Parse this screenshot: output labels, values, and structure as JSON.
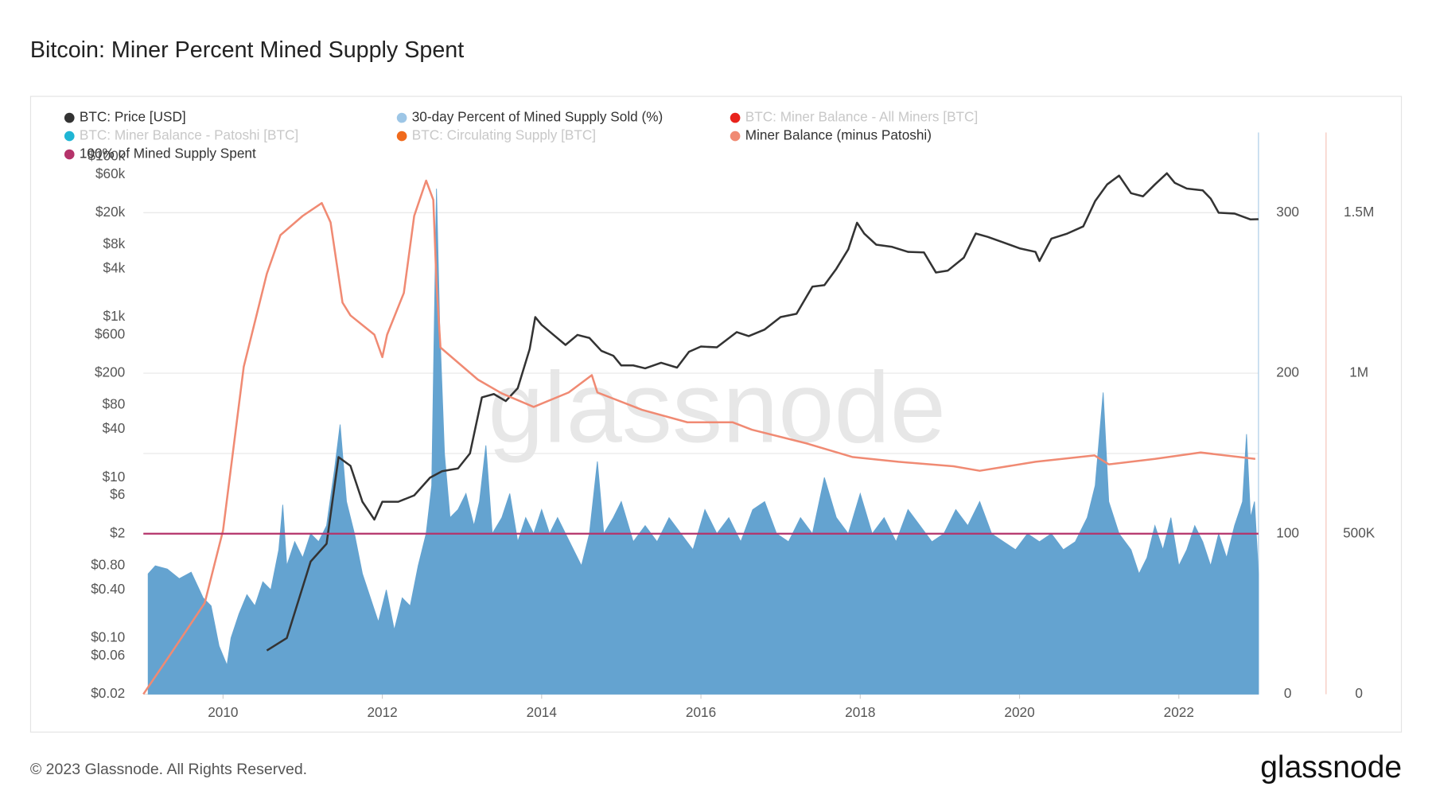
{
  "chart_data": {
    "type": "line",
    "title": "Bitcoin: Miner Percent Mined Supply Spent",
    "watermark": "glassnode",
    "xlim": [
      2009.0,
      2023.0
    ],
    "xticks": [
      2010,
      2012,
      2014,
      2016,
      2018,
      2020,
      2022
    ],
    "y_scale": "log",
    "ylim": [
      0.02,
      200000
    ],
    "yticks": [
      {
        "value": 100000,
        "label": "$100k"
      },
      {
        "value": 60000,
        "label": "$60k"
      },
      {
        "value": 20000,
        "label": "$20k"
      },
      {
        "value": 8000,
        "label": "$8k"
      },
      {
        "value": 4000,
        "label": "$4k"
      },
      {
        "value": 1000,
        "label": "$1k"
      },
      {
        "value": 600,
        "label": "$600"
      },
      {
        "value": 200,
        "label": "$200"
      },
      {
        "value": 80,
        "label": "$80"
      },
      {
        "value": 40,
        "label": "$40"
      },
      {
        "value": 10,
        "label": "$10"
      },
      {
        "value": 6,
        "label": "$6"
      },
      {
        "value": 2,
        "label": "$2"
      },
      {
        "value": 0.8,
        "label": "$0.80"
      },
      {
        "value": 0.4,
        "label": "$0.40"
      },
      {
        "value": 0.1,
        "label": "$0.10"
      },
      {
        "value": 0.06,
        "label": "$0.06"
      },
      {
        "value": 0.02,
        "label": "$0.02"
      }
    ],
    "ygrid": [
      2,
      20,
      200,
      20000
    ],
    "y2lim": [
      0,
      350
    ],
    "y2ticks": [
      0,
      100,
      200,
      300
    ],
    "y2_color": "#a9cbe6",
    "y3lim": [
      0,
      1750000
    ],
    "y3ticks": [
      0,
      {
        "value": 500000,
        "label": "500K"
      },
      {
        "value": 1000000,
        "label": "1M"
      },
      {
        "value": 1500000,
        "label": "1.5M"
      }
    ],
    "y3_color": "#f5c2b6",
    "series": [
      {
        "name": "BTC: Price [USD]",
        "color": "#333333",
        "type": "line",
        "axis": "y",
        "visible": true,
        "x": [
          2010.55,
          2010.8,
          2010.95,
          2011.1,
          2011.3,
          2011.45,
          2011.6,
          2011.75,
          2011.9,
          2012.0,
          2012.2,
          2012.4,
          2012.6,
          2012.75,
          2012.95,
          2013.1,
          2013.25,
          2013.4,
          2013.55,
          2013.7,
          2013.85,
          2013.92,
          2014.0,
          2014.15,
          2014.3,
          2014.45,
          2014.6,
          2014.75,
          2014.9,
          2015.0,
          2015.15,
          2015.3,
          2015.5,
          2015.7,
          2015.85,
          2016.0,
          2016.2,
          2016.45,
          2016.6,
          2016.8,
          2017.0,
          2017.2,
          2017.4,
          2017.55,
          2017.7,
          2017.85,
          2017.96,
          2018.05,
          2018.2,
          2018.4,
          2018.6,
          2018.8,
          2018.95,
          2019.1,
          2019.3,
          2019.45,
          2019.6,
          2019.8,
          2020.0,
          2020.2,
          2020.25,
          2020.4,
          2020.6,
          2020.8,
          2020.95,
          2021.1,
          2021.25,
          2021.4,
          2021.55,
          2021.7,
          2021.85,
          2021.95,
          2022.1,
          2022.3,
          2022.4,
          2022.5,
          2022.7,
          2022.9,
          2023.0
        ],
        "values": [
          0.07,
          0.1,
          0.3,
          0.9,
          1.5,
          18,
          14,
          5,
          3,
          5,
          5,
          6,
          10,
          12,
          13,
          20,
          100,
          110,
          90,
          130,
          400,
          1000,
          800,
          600,
          450,
          600,
          550,
          380,
          330,
          250,
          250,
          230,
          270,
          235,
          370,
          430,
          420,
          650,
          580,
          700,
          1000,
          1100,
          2400,
          2500,
          4000,
          7000,
          15000,
          11000,
          8000,
          7500,
          6500,
          6400,
          3600,
          3800,
          5500,
          11000,
          10000,
          8500,
          7200,
          6500,
          5000,
          9500,
          11000,
          13500,
          28000,
          45000,
          58000,
          35000,
          32000,
          45000,
          62000,
          47000,
          40000,
          38000,
          30000,
          20000,
          19500,
          16500,
          16600
        ]
      },
      {
        "name": "30-day Percent of Mined Supply Sold (%)",
        "color": "#9dc6e6",
        "fill": "#64a3d0",
        "type": "area",
        "axis": "y2",
        "visible": true,
        "x": [
          2009.06,
          2009.15,
          2009.3,
          2009.45,
          2009.6,
          2009.75,
          2009.85,
          2009.95,
          2010.05,
          2010.1,
          2010.2,
          2010.3,
          2010.4,
          2010.5,
          2010.6,
          2010.7,
          2010.75,
          2010.8,
          2010.9,
          2011.0,
          2011.1,
          2011.2,
          2011.3,
          2011.4,
          2011.47,
          2011.55,
          2011.65,
          2011.75,
          2011.85,
          2011.95,
          2012.05,
          2012.15,
          2012.25,
          2012.35,
          2012.45,
          2012.55,
          2012.62,
          2012.68,
          2012.72,
          2012.78,
          2012.85,
          2012.95,
          2013.05,
          2013.15,
          2013.22,
          2013.3,
          2013.38,
          2013.5,
          2013.6,
          2013.7,
          2013.8,
          2013.9,
          2014.0,
          2014.1,
          2014.2,
          2014.35,
          2014.5,
          2014.6,
          2014.7,
          2014.78,
          2014.9,
          2015.0,
          2015.15,
          2015.3,
          2015.45,
          2015.6,
          2015.75,
          2015.9,
          2016.05,
          2016.2,
          2016.35,
          2016.5,
          2016.65,
          2016.8,
          2016.95,
          2017.1,
          2017.25,
          2017.4,
          2017.55,
          2017.7,
          2017.85,
          2018.0,
          2018.15,
          2018.3,
          2018.45,
          2018.6,
          2018.75,
          2018.9,
          2019.05,
          2019.2,
          2019.35,
          2019.5,
          2019.65,
          2019.8,
          2019.95,
          2020.1,
          2020.25,
          2020.4,
          2020.55,
          2020.7,
          2020.85,
          2020.95,
          2021.05,
          2021.12,
          2021.25,
          2021.4,
          2021.5,
          2021.6,
          2021.7,
          2021.8,
          2021.9,
          2022.0,
          2022.1,
          2022.2,
          2022.3,
          2022.4,
          2022.5,
          2022.6,
          2022.7,
          2022.8,
          2022.85,
          2022.9,
          2022.95,
          2023.0
        ],
        "values": [
          75,
          80,
          78,
          72,
          76,
          60,
          55,
          30,
          18,
          35,
          50,
          62,
          55,
          70,
          65,
          90,
          118,
          80,
          95,
          85,
          100,
          95,
          105,
          140,
          168,
          120,
          100,
          75,
          60,
          45,
          65,
          40,
          60,
          55,
          80,
          100,
          130,
          315,
          230,
          150,
          110,
          115,
          125,
          105,
          120,
          155,
          100,
          110,
          125,
          95,
          110,
          100,
          115,
          100,
          110,
          95,
          80,
          100,
          145,
          100,
          110,
          120,
          95,
          105,
          95,
          110,
          100,
          90,
          115,
          100,
          110,
          95,
          115,
          120,
          100,
          95,
          110,
          100,
          135,
          110,
          100,
          125,
          100,
          110,
          95,
          115,
          105,
          95,
          100,
          115,
          105,
          120,
          100,
          95,
          90,
          100,
          95,
          100,
          90,
          95,
          110,
          130,
          188,
          120,
          100,
          90,
          75,
          85,
          105,
          90,
          110,
          80,
          90,
          105,
          95,
          80,
          100,
          85,
          105,
          120,
          162,
          110,
          120,
          75
        ]
      },
      {
        "name": "BTC: Miner Balance - All Miners [BTC]",
        "color": "#e8221b",
        "type": "line",
        "axis": "y3",
        "visible": false,
        "x": [],
        "values": []
      },
      {
        "name": "BTC: Miner Balance - Patoshi [BTC]",
        "color": "#1fb5d4",
        "type": "line",
        "axis": "y3",
        "visible": false,
        "x": [],
        "values": []
      },
      {
        "name": "BTC: Circulating Supply [BTC]",
        "color": "#f06a1c",
        "type": "line",
        "axis": "y3",
        "visible": false,
        "x": [],
        "values": []
      },
      {
        "name": "Miner Balance (minus Patoshi)",
        "color": "#f08a73",
        "type": "line",
        "axis": "y3",
        "visible": true,
        "x": [
          2009.0,
          2009.35,
          2009.77,
          2010.0,
          2010.26,
          2010.55,
          2010.72,
          2011.0,
          2011.24,
          2011.35,
          2011.5,
          2011.6,
          2011.9,
          2012.0,
          2012.06,
          2012.27,
          2012.4,
          2012.55,
          2012.64,
          2012.68,
          2012.73,
          2013.2,
          2013.5,
          2013.9,
          2014.34,
          2014.63,
          2014.7,
          2015.26,
          2015.83,
          2016.4,
          2016.64,
          2017.33,
          2017.9,
          2018.48,
          2019.17,
          2019.5,
          2020.2,
          2020.94,
          2021.12,
          2021.7,
          2022.27,
          2022.96
        ],
        "values": [
          0,
          128000,
          284000,
          510000,
          1020000,
          1310000,
          1430000,
          1490000,
          1530000,
          1470000,
          1220000,
          1180000,
          1120000,
          1050000,
          1120000,
          1250000,
          1490000,
          1600000,
          1540000,
          1280000,
          1080000,
          980000,
          937000,
          895000,
          940000,
          994000,
          940000,
          886000,
          847000,
          847000,
          824000,
          781000,
          739000,
          724000,
          710000,
          696000,
          724000,
          744000,
          716000,
          733000,
          753000,
          733000
        ]
      },
      {
        "name": "100% of Mined Supply Spent",
        "color": "#b5336a",
        "type": "hline",
        "axis": "y2",
        "visible": true,
        "value": 100
      }
    ]
  },
  "footer": {
    "copyright": "© 2023 Glassnode. All Rights Reserved.",
    "logo": "glassnode"
  }
}
